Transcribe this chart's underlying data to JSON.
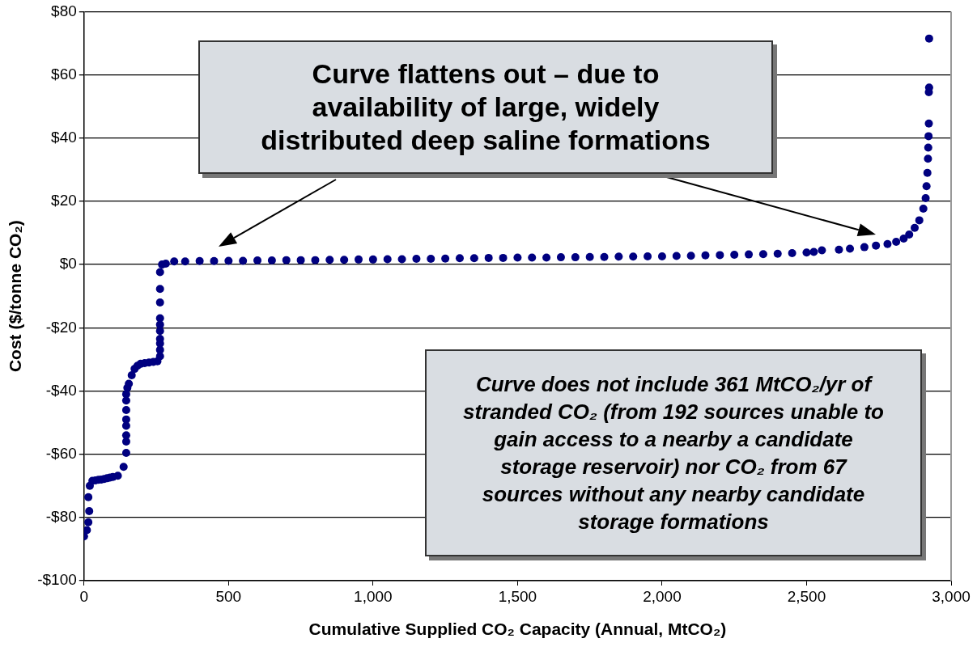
{
  "chart_data": {
    "type": "scatter",
    "xlabel": "Cumulative Supplied CO₂ Capacity (Annual, MtCO₂)",
    "ylabel": "Cost ($/tonne CO₂)",
    "annotations": [
      "Curve flattens out – due to availability of large, widely distributed deep saline formations",
      "Curve does not include 361 MtCO₂/yr of stranded CO₂ (from 192 sources unable to gain access to a nearby a candidate storage reservoir) nor CO₂ from 67 sources without any nearby candidate storage formations"
    ],
    "series": [
      {
        "color": "#000080",
        "x": [
          0,
          10,
          15,
          18,
          15,
          20,
          29,
          40,
          50,
          60,
          70,
          80,
          90,
          100,
          117,
          137,
          146,
          146,
          146,
          146,
          146,
          146,
          146,
          146,
          150,
          155,
          165,
          175,
          185,
          196,
          210,
          225,
          240,
          254,
          263,
          263,
          263,
          263,
          263,
          263,
          263,
          263,
          263,
          263,
          270,
          283,
          312,
          350,
          400,
          450,
          500,
          550,
          600,
          650,
          700,
          750,
          800,
          850,
          900,
          950,
          1000,
          1050,
          1100,
          1150,
          1200,
          1250,
          1300,
          1350,
          1400,
          1450,
          1500,
          1550,
          1600,
          1650,
          1700,
          1750,
          1800,
          1850,
          1900,
          1950,
          2000,
          2050,
          2100,
          2150,
          2200,
          2250,
          2300,
          2350,
          2400,
          2450,
          2500,
          2525,
          2553,
          2612,
          2650,
          2700,
          2740,
          2780,
          2810,
          2836,
          2855,
          2874,
          2890,
          2904,
          2912,
          2915,
          2918,
          2920,
          2921,
          2922,
          2923,
          2923,
          2924,
          2924
        ],
        "values": [
          -86,
          -84,
          -81.5,
          -78,
          -73.6,
          -70,
          -68.4,
          -68.3,
          -68.1,
          -68,
          -67.8,
          -67.6,
          -67.4,
          -67.2,
          -66.8,
          -64,
          -59.6,
          -56,
          -54,
          -51,
          -49,
          -46,
          -43,
          -41,
          -39,
          -37.7,
          -35,
          -33,
          -32,
          -31.4,
          -31.2,
          -31,
          -30.8,
          -30.6,
          -29,
          -27,
          -25,
          -23.5,
          -21,
          -19,
          -17,
          -12,
          -7.7,
          -2.4,
          0,
          0.3,
          1,
          1,
          1.1,
          1.1,
          1.2,
          1.2,
          1.3,
          1.3,
          1.4,
          1.4,
          1.4,
          1.5,
          1.5,
          1.6,
          1.6,
          1.7,
          1.7,
          1.8,
          1.8,
          1.9,
          2,
          2,
          2.1,
          2.1,
          2.2,
          2.2,
          2.2,
          2.3,
          2.3,
          2.4,
          2.4,
          2.5,
          2.5,
          2.6,
          2.6,
          2.7,
          2.8,
          2.9,
          3,
          3.1,
          3.2,
          3.3,
          3.4,
          3.6,
          3.8,
          4,
          4.5,
          4.7,
          5,
          5.5,
          6,
          6.5,
          7.2,
          8.2,
          9.5,
          11.6,
          14,
          17.7,
          21,
          24.8,
          29,
          33.5,
          37,
          40.6,
          44.6,
          54.5,
          56,
          71.5
        ]
      }
    ],
    "marker": "circle",
    "grid": "y",
    "xlim": [
      0,
      3000
    ],
    "xticks": [
      {
        "value": 0,
        "label": "0"
      },
      {
        "value": 500,
        "label": "500"
      },
      {
        "value": 1000,
        "label": "1,000"
      },
      {
        "value": 1500,
        "label": "1,500"
      },
      {
        "value": 2000,
        "label": "2,000"
      },
      {
        "value": 2500,
        "label": "2,500"
      },
      {
        "value": 3000,
        "label": "3,000"
      }
    ],
    "ylim": [
      -100,
      80
    ],
    "yticks": [
      {
        "value": -100,
        "label": "-$100"
      },
      {
        "value": -80,
        "label": "-$80"
      },
      {
        "value": -60,
        "label": "-$60"
      },
      {
        "value": -40,
        "label": "-$40"
      },
      {
        "value": -20,
        "label": "-$20"
      },
      {
        "value": 0,
        "label": "$0"
      },
      {
        "value": 20,
        "label": "$20"
      },
      {
        "value": 40,
        "label": "$40"
      },
      {
        "value": 60,
        "label": "$60"
      },
      {
        "value": 80,
        "label": "$80"
      }
    ]
  }
}
